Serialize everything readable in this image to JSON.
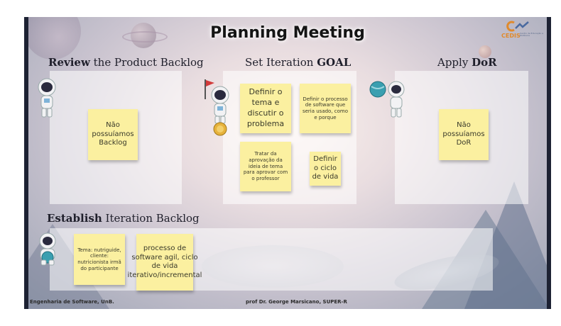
{
  "title": "Planning Meeting",
  "logo": {
    "text": "CEDIS",
    "subtext": "Centro de Educação a Distância"
  },
  "sections": {
    "review": {
      "bold": "Review",
      "rest": " the Product Backlog"
    },
    "goal": {
      "pre": "Set Iteration ",
      "bold": "GOAL"
    },
    "dor": {
      "pre": "Apply ",
      "bold": "DoR"
    },
    "backlog": {
      "bold": "Establish",
      "rest": " Iteration Backlog"
    }
  },
  "notes": {
    "review_1": "Não possuíamos Backlog",
    "goal_1": "Definir o tema e discutir o problema",
    "goal_2": "Definir o processo de software que seria usado, como e porque",
    "goal_3": "Tratar da aprovação da ideia de tema para aprovar com o professor",
    "goal_4": "Definir o ciclo de vida",
    "dor_1": "Não possuíamos DoR",
    "backlog_1": "Tema: nutriguide, cliente: nutricionista irmã do participante",
    "backlog_2": "processo de software agil, ciclo de vida iterativo/incremental"
  },
  "footer": {
    "left": "Engenharia de Software, UnB.",
    "center": "prof Dr. George Marsicano, SUPER-R"
  },
  "colors": {
    "sticky": "#fbf0a0",
    "heading": "#1f1f2b",
    "logo": "#e08a2c"
  }
}
